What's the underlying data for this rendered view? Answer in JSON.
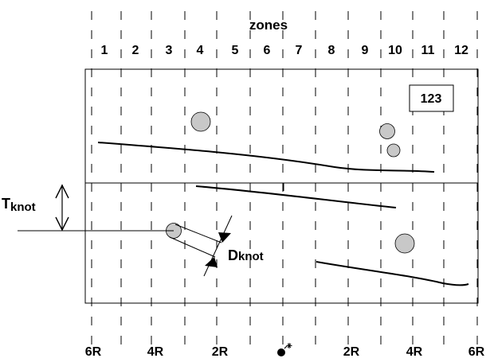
{
  "header": {
    "title": "zones"
  },
  "zones": [
    "1",
    "2",
    "3",
    "4",
    "5",
    "6",
    "7",
    "8",
    "9",
    "10",
    "11",
    "12"
  ],
  "box_label": "123",
  "thickness_label": {
    "main": "T",
    "sub": "knot"
  },
  "diameter_label": {
    "main": "D",
    "sub": "knot"
  },
  "scale_labels": [
    "6R",
    "4R",
    "2R",
    "2R",
    "4R",
    "6R"
  ],
  "center_symbol": "bomb-icon",
  "colors": {
    "ink": "#000000",
    "knot_fill": "#c8c8c8",
    "background": "#ffffff"
  }
}
